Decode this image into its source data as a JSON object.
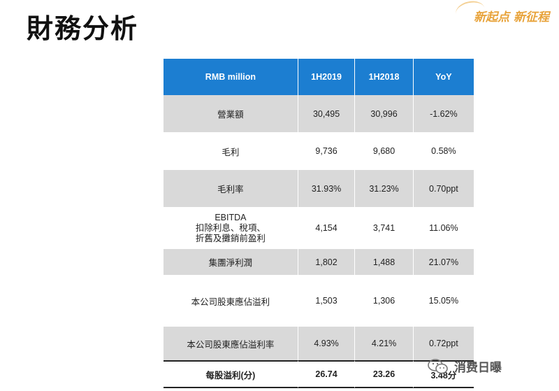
{
  "title": "財務分析",
  "slogan": "新起点 新征程",
  "table": {
    "headers": [
      "RMB million",
      "1H2019",
      "1H2018",
      "YoY"
    ],
    "rows": [
      {
        "label": "營業額",
        "h2019": "30,495",
        "h2018": "30,996",
        "yoy": "-1.62%"
      },
      {
        "label": "毛利",
        "h2019": "9,736",
        "h2018": "9,680",
        "yoy": "0.58%"
      },
      {
        "label": "毛利率",
        "h2019": "31.93%",
        "h2018": "31.23%",
        "yoy": "0.70ppt"
      },
      {
        "label_lines": [
          "EBITDA",
          "扣除利息、稅項、",
          "折舊及攤銷前盈利"
        ],
        "h2019": "4,154",
        "h2018": "3,741",
        "yoy": "11.06%"
      },
      {
        "label": "集團淨利潤",
        "h2019": "1,802",
        "h2018": "1,488",
        "yoy": "21.07%"
      },
      {
        "label": "本公司股東應佔溢利",
        "h2019": "1,503",
        "h2018": "1,306",
        "yoy": "15.05%"
      },
      {
        "label": "本公司股東應佔溢利率",
        "h2019": "4.93%",
        "h2018": "4.21%",
        "yoy": "0.72ppt"
      },
      {
        "label": "每股溢利(分)",
        "h2019": "26.74",
        "h2018": "23.26",
        "yoy": "3.48分"
      }
    ]
  },
  "watermark": "消费日曝"
}
